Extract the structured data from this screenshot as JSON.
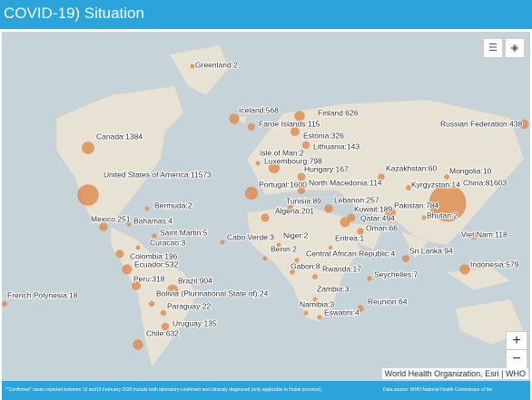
{
  "header": {
    "title": "COVID-19) Situation"
  },
  "places": [
    {
      "label": "Greenland:2",
      "cases": 2
    },
    {
      "label": "Iceland:568",
      "cases": 568
    },
    {
      "label": "Finland:626",
      "cases": 626
    },
    {
      "label": "Faroe Islands:115",
      "cases": 115
    },
    {
      "label": "Russian Federation:438",
      "cases": 438
    },
    {
      "label": "Estonia:326",
      "cases": 326
    },
    {
      "label": "Lithuania:143",
      "cases": 143
    },
    {
      "label": "Canada:1384",
      "cases": 1384
    },
    {
      "label": "Isle of Man:2",
      "cases": 2
    },
    {
      "label": "Luxembourg:798",
      "cases": 798
    },
    {
      "label": "Hungary:167",
      "cases": 167
    },
    {
      "label": "Kazakhstan:60",
      "cases": 60
    },
    {
      "label": "Mongolia:10",
      "cases": 10
    },
    {
      "label": "United States of America:11573",
      "cases": 11573
    },
    {
      "label": "North Macedonia:114",
      "cases": 114
    },
    {
      "label": "Kyrgyzstan:14",
      "cases": 14
    },
    {
      "label": "China:81603",
      "cases": 81603
    },
    {
      "label": "Portugal:1600",
      "cases": 1600
    },
    {
      "label": "Tunisia:89",
      "cases": 89
    },
    {
      "label": "Lebanon:257",
      "cases": 257
    },
    {
      "label": "Pakistan:784",
      "cases": 784
    },
    {
      "label": "Kuwait:189",
      "cases": 189
    },
    {
      "label": "Qatar:494",
      "cases": 494
    },
    {
      "label": "Bermuda:2",
      "cases": 2
    },
    {
      "label": "Algeria:201",
      "cases": 201
    },
    {
      "label": "Bhutan:2",
      "cases": 2
    },
    {
      "label": "Mexico:251",
      "cases": 251
    },
    {
      "label": "Bahamas:4",
      "cases": 4
    },
    {
      "label": "Oman:66",
      "cases": 66
    },
    {
      "label": "Saint Martin:5",
      "cases": 5
    },
    {
      "label": "Cabo Verde:3",
      "cases": 3
    },
    {
      "label": "Niger:2",
      "cases": 2
    },
    {
      "label": "Eritrea:1",
      "cases": 1
    },
    {
      "label": "Viet Nam:118",
      "cases": 118
    },
    {
      "label": "Curacao:3",
      "cases": 3
    },
    {
      "label": "Benin:2",
      "cases": 2
    },
    {
      "label": "Central African Republic:4",
      "cases": 4
    },
    {
      "label": "Sri Lanka:94",
      "cases": 94
    },
    {
      "label": "Colombia:196",
      "cases": 196
    },
    {
      "label": "Ecuador:532",
      "cases": 532
    },
    {
      "label": "Gabon:8",
      "cases": 8
    },
    {
      "label": "Rwanda:17",
      "cases": 17
    },
    {
      "label": "Seychelles:7",
      "cases": 7
    },
    {
      "label": "Indonesia:579",
      "cases": 579
    },
    {
      "label": "Peru:318",
      "cases": 318
    },
    {
      "label": "Brazil:904",
      "cases": 904
    },
    {
      "label": "Zambia:3",
      "cases": 3
    },
    {
      "label": "French Polynesia:18",
      "cases": 18
    },
    {
      "label": "Bolivia (Plurinational State of):24",
      "cases": 24
    },
    {
      "label": "Namibia:3",
      "cases": 3
    },
    {
      "label": "Reunion:64",
      "cases": 64
    },
    {
      "label": "Paraguay:22",
      "cases": 22
    },
    {
      "label": "Eswatini:4",
      "cases": 4
    },
    {
      "label": "Uruguay:135",
      "cases": 135
    },
    {
      "label": "Chile:632",
      "cases": 632
    }
  ],
  "attribution": "World Health Organization, Esri | WHO",
  "footer": {
    "note": "*\"Confirmed\" cases reported between 13 and19 February 2020 include both laboratory-confirmed and clinically diagnosed (only  applicable to Hubei province);",
    "source": "Data source: WHO National Health Commission of the"
  }
}
